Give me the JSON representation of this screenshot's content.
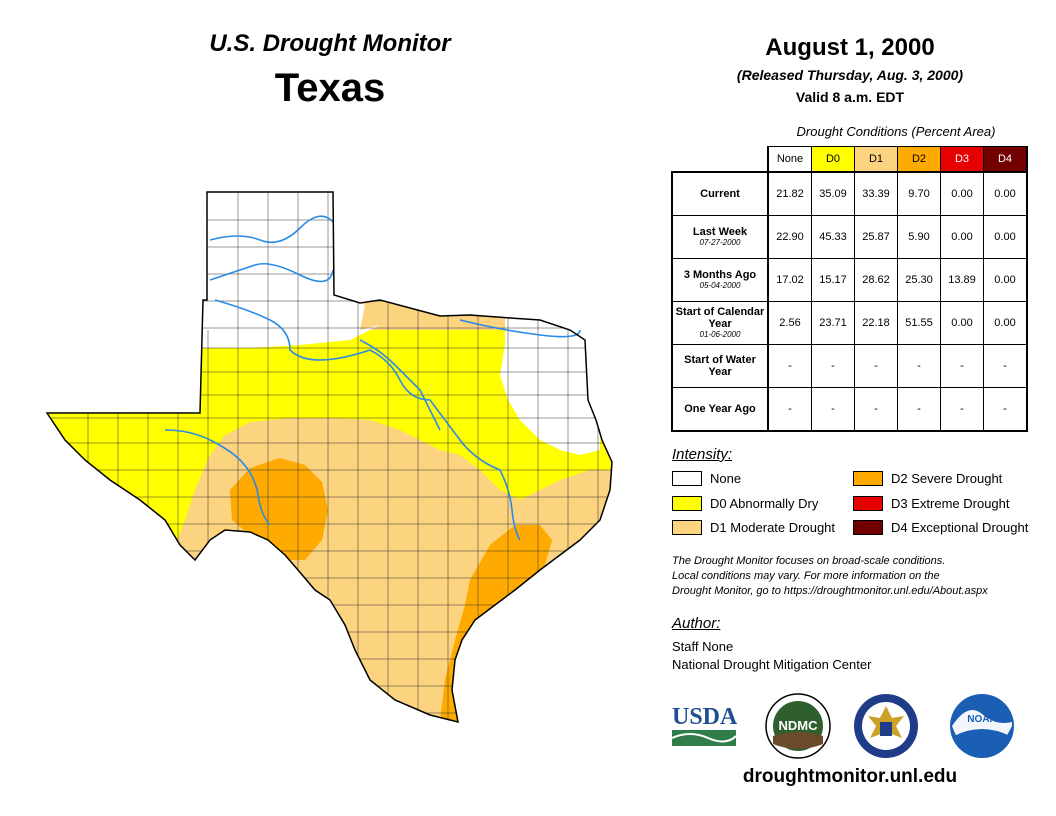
{
  "header": {
    "monitor_title": "U.S. Drought Monitor",
    "state": "Texas",
    "date": "August 1, 2000",
    "released": "(Released Thursday, Aug. 3, 2000)",
    "valid": "Valid 8 a.m. EDT"
  },
  "colors": {
    "none": "#ffffff",
    "d0": "#ffff00",
    "d1": "#fcd37f",
    "d2": "#ffaa00",
    "d3": "#e60000",
    "d4": "#730000",
    "river": "#2a8ae6",
    "border": "#000000",
    "county": "#333333"
  },
  "table": {
    "caption": "Drought Conditions (Percent Area)",
    "columns": [
      "None",
      "D0",
      "D1",
      "D2",
      "D3",
      "D4"
    ],
    "rows": [
      {
        "label": "Current",
        "sublabel": "",
        "values": [
          "21.82",
          "35.09",
          "33.39",
          "9.70",
          "0.00",
          "0.00"
        ]
      },
      {
        "label": "Last Week",
        "sublabel": "07-27-2000",
        "values": [
          "22.90",
          "45.33",
          "25.87",
          "5.90",
          "0.00",
          "0.00"
        ]
      },
      {
        "label": "3 Months Ago",
        "sublabel": "05-04-2000",
        "values": [
          "17.02",
          "15.17",
          "28.62",
          "25.30",
          "13.89",
          "0.00"
        ]
      },
      {
        "label": "Start of Calendar Year",
        "sublabel": "01-06-2000",
        "values": [
          "2.56",
          "23.71",
          "22.18",
          "51.55",
          "0.00",
          "0.00"
        ]
      },
      {
        "label": "Start of Water Year",
        "sublabel": "",
        "values": [
          "-",
          "-",
          "-",
          "-",
          "-",
          "-"
        ]
      },
      {
        "label": "One Year Ago",
        "sublabel": "",
        "values": [
          "-",
          "-",
          "-",
          "-",
          "-",
          "-"
        ]
      }
    ]
  },
  "legend": {
    "title": "Intensity:",
    "items": [
      {
        "label": "None",
        "color": "#ffffff"
      },
      {
        "label": "D0 Abnormally Dry",
        "color": "#ffff00"
      },
      {
        "label": "D1 Moderate Drought",
        "color": "#fcd37f"
      },
      {
        "label": "D2 Severe Drought",
        "color": "#ffaa00"
      },
      {
        "label": "D3 Extreme Drought",
        "color": "#e60000"
      },
      {
        "label": "D4 Exceptional Drought",
        "color": "#730000"
      }
    ]
  },
  "disclaimer": {
    "line1": "The Drought Monitor focuses on broad-scale conditions.",
    "line2": "Local conditions may vary. For more information on the",
    "line3": "Drought Monitor, go to https://droughtmonitor.unl.edu/About.aspx"
  },
  "author": {
    "title": "Author:",
    "name": "Staff None",
    "org": "National Drought Mitigation Center"
  },
  "logos": {
    "usda": "USDA",
    "ndmc": "NDMC",
    "noaa": "NOAA"
  },
  "website": "droughtmonitor.unl.edu"
}
